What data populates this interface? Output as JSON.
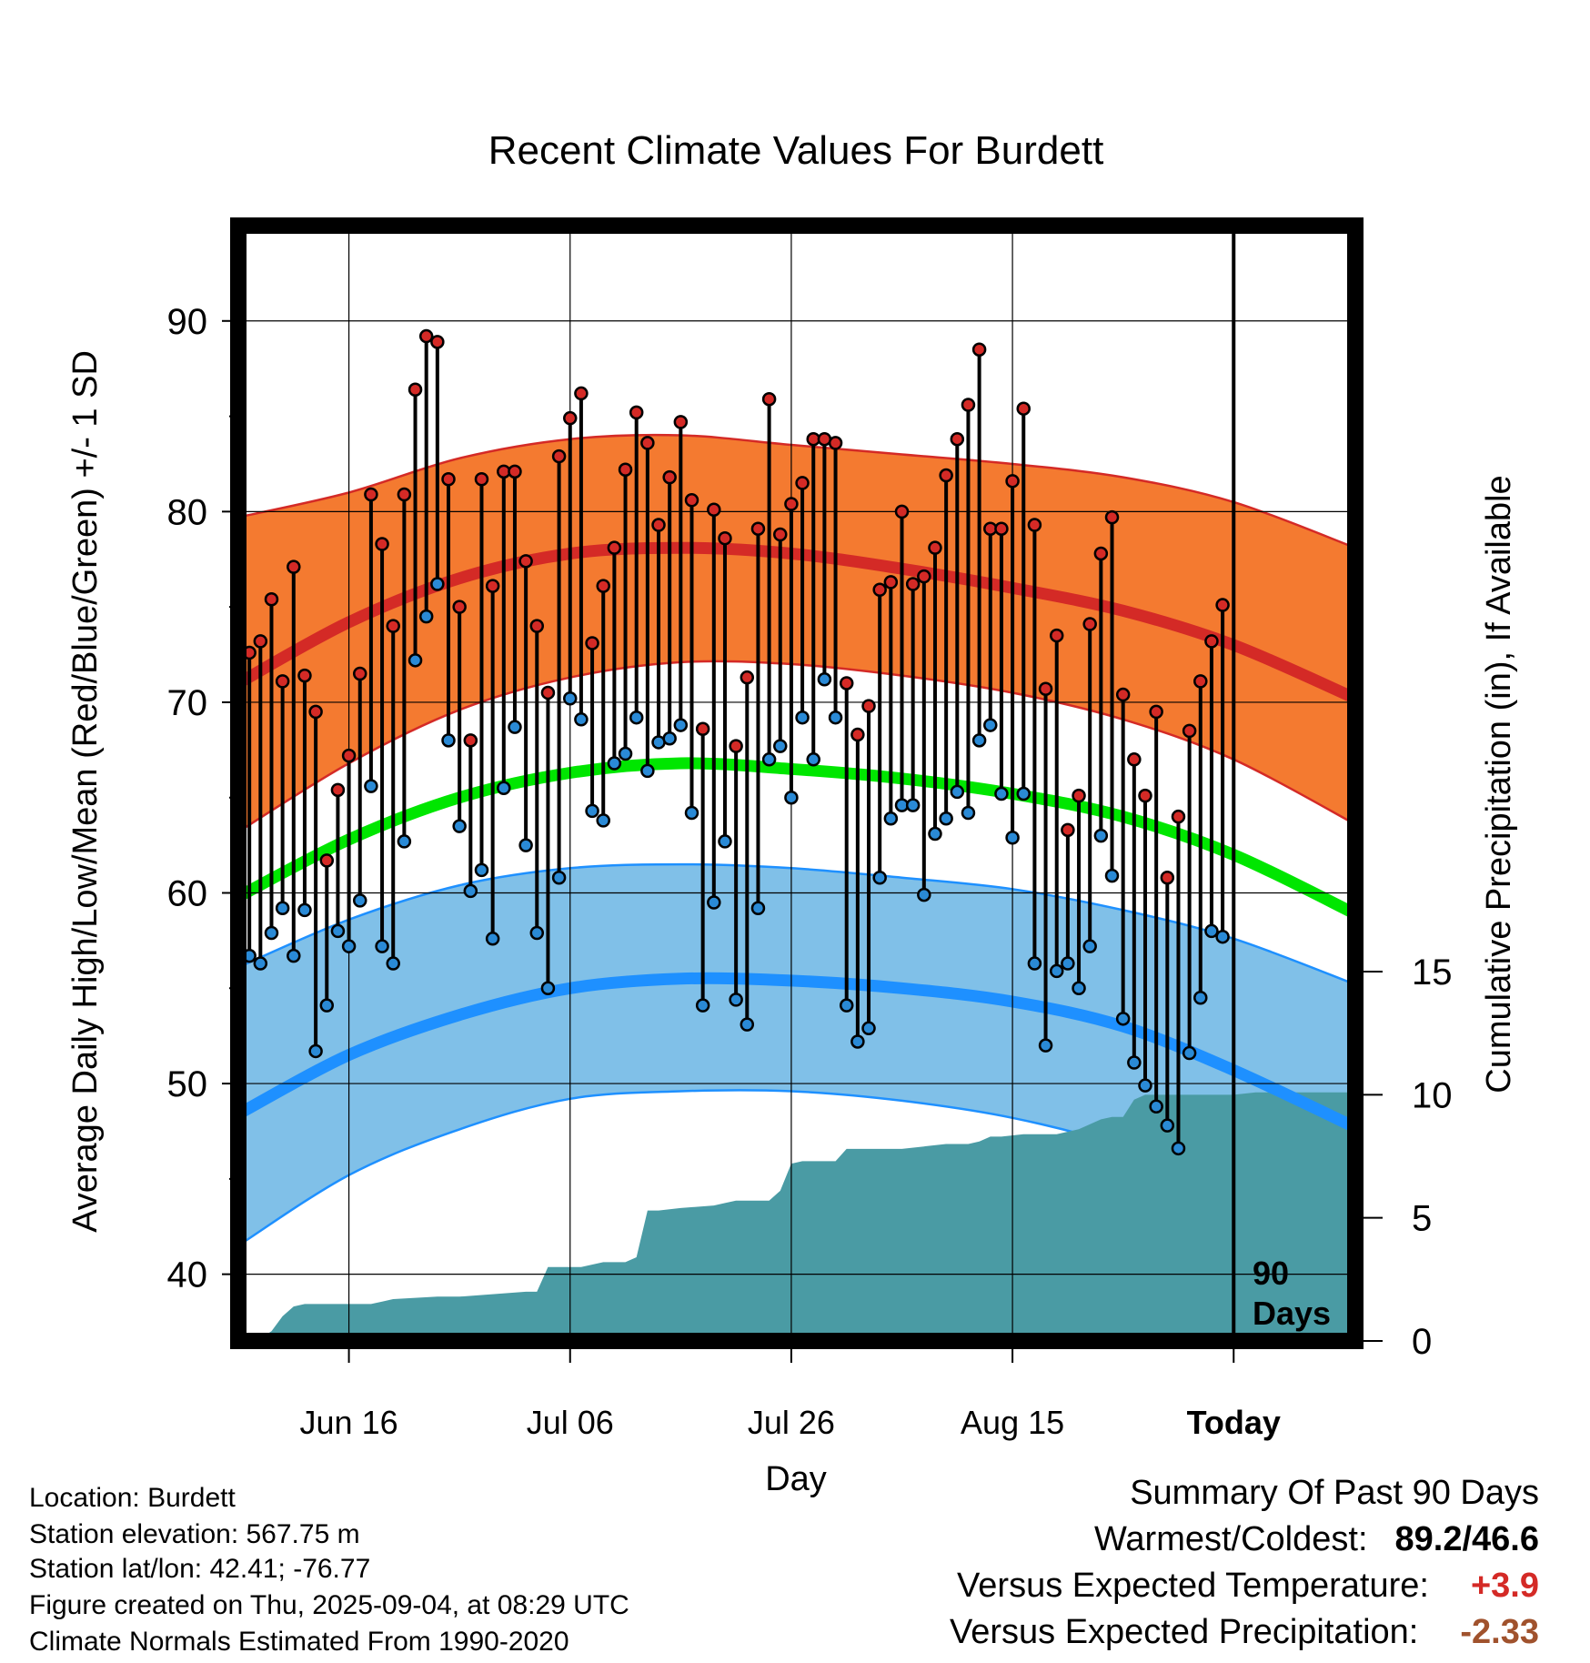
{
  "chart_data": {
    "type": "line",
    "title": "Recent Climate Values For Burdett",
    "xlabel": "Day",
    "ylabel": "Average Daily High/Low/Mean (Red/Blue/Green) +/- 1 SD",
    "y2label": "Cumulative Precipitation (in), If Available",
    "ylim": [
      36.5,
      95
    ],
    "y2lim": [
      0,
      45.3
    ],
    "y_ticks": [
      40,
      50,
      60,
      70,
      80,
      90
    ],
    "y2_ticks": [
      0,
      5,
      10,
      15
    ],
    "x_day_range": [
      0,
      101
    ],
    "x_ticks": [
      {
        "day": 10,
        "label": "Jun 16"
      },
      {
        "day": 30,
        "label": "Jul 06"
      },
      {
        "day": 50,
        "label": "Jul 26"
      },
      {
        "day": 70,
        "label": "Aug 15"
      },
      {
        "day": 90,
        "label": "Today"
      }
    ],
    "today_day": 90,
    "today_annotation": [
      "90",
      "Days"
    ],
    "normals": {
      "days": [
        0,
        10,
        20,
        30,
        40,
        50,
        60,
        70,
        80,
        90,
        101
      ],
      "high_mean": [
        71.0,
        74.2,
        76.5,
        77.8,
        78.1,
        77.8,
        77.0,
        76.0,
        74.8,
        73.0,
        70.2
      ],
      "high_upper": [
        79.7,
        81.0,
        82.8,
        83.8,
        84.0,
        83.5,
        83.0,
        82.5,
        81.8,
        80.5,
        78.1
      ],
      "high_lower": [
        63.2,
        66.8,
        69.6,
        71.3,
        72.1,
        72.0,
        71.4,
        70.5,
        69.1,
        67.0,
        63.6
      ],
      "mean_mean": [
        59.8,
        62.8,
        65.0,
        66.3,
        66.8,
        66.5,
        66.0,
        65.2,
        64.0,
        62.0,
        58.9
      ],
      "low_mean": [
        48.4,
        51.5,
        53.6,
        55.0,
        55.5,
        55.4,
        55.0,
        54.3,
        53.0,
        50.7,
        47.7
      ],
      "low_upper": [
        56.1,
        58.6,
        60.4,
        61.3,
        61.5,
        61.3,
        60.8,
        60.2,
        59.1,
        57.6,
        55.2
      ],
      "low_lower": [
        41.5,
        45.2,
        47.6,
        49.2,
        49.6,
        49.6,
        49.1,
        48.2,
        46.7,
        44.5,
        41.0
      ]
    },
    "highs": [
      67.7,
      72.6,
      73.2,
      75.4,
      71.1,
      77.1,
      71.4,
      69.5,
      61.7,
      65.4,
      67.2,
      71.5,
      80.9,
      78.3,
      74.0,
      80.9,
      86.4,
      89.2,
      88.9,
      81.7,
      75.0,
      68.0,
      81.7,
      76.1,
      82.1,
      82.1,
      77.4,
      74.0,
      70.5,
      82.9,
      84.9,
      86.2,
      73.1,
      76.1,
      78.1,
      82.2,
      85.2,
      83.6,
      79.3,
      81.8,
      84.7,
      80.6,
      68.6,
      80.1,
      78.6,
      67.7,
      71.3,
      79.1,
      85.9,
      78.8,
      80.4,
      81.5,
      83.8,
      83.8,
      83.6,
      71.0,
      68.3,
      69.8,
      75.9,
      76.3,
      80.0,
      76.2,
      76.6,
      78.1,
      81.9,
      83.8,
      85.6,
      88.5,
      79.1,
      79.1,
      81.6,
      85.4,
      79.3,
      70.7,
      73.5,
      63.3,
      65.1,
      74.1,
      77.8,
      79.7,
      70.4,
      67.0,
      65.1,
      69.5,
      60.8,
      64.0,
      68.5,
      71.1,
      73.2,
      75.1
    ],
    "lows": [
      59.9,
      56.7,
      56.3,
      57.9,
      59.2,
      56.7,
      59.1,
      51.7,
      54.1,
      58.0,
      57.2,
      59.6,
      65.6,
      57.2,
      56.3,
      62.7,
      72.2,
      74.5,
      76.2,
      68.0,
      63.5,
      60.1,
      61.2,
      57.6,
      65.5,
      68.7,
      62.5,
      57.9,
      55.0,
      60.8,
      70.2,
      69.1,
      64.3,
      63.8,
      66.8,
      67.3,
      69.2,
      66.4,
      67.9,
      68.1,
      68.8,
      64.2,
      54.1,
      59.5,
      62.7,
      54.4,
      53.1,
      59.2,
      67.0,
      67.7,
      65.0,
      69.2,
      67.0,
      71.2,
      69.2,
      54.1,
      52.2,
      52.9,
      60.8,
      63.9,
      64.6,
      64.6,
      59.9,
      63.1,
      63.9,
      65.3,
      64.2,
      68.0,
      68.8,
      65.2,
      62.9,
      65.2,
      56.3,
      52.0,
      55.9,
      56.3,
      55.0,
      57.2,
      63.0,
      60.9,
      53.4,
      51.1,
      49.9,
      48.8,
      47.8,
      46.6,
      51.6,
      54.5,
      58.0,
      57.7
    ],
    "precip_days": [
      0,
      2,
      3,
      4,
      5,
      6,
      8,
      10,
      11,
      12,
      13,
      14,
      18,
      19,
      20,
      26,
      27,
      28,
      29,
      31,
      33,
      35,
      36,
      37,
      38,
      40,
      43,
      44,
      45,
      46,
      47,
      48,
      49,
      50,
      51,
      54,
      55,
      60,
      62,
      64,
      66,
      67,
      68,
      69,
      71,
      73,
      74,
      75,
      76,
      78,
      79,
      80,
      81,
      82,
      90,
      92,
      101
    ],
    "precip_values": [
      0.0,
      0.1,
      0.4,
      1.0,
      1.4,
      1.5,
      1.5,
      1.5,
      1.5,
      1.5,
      1.6,
      1.7,
      1.8,
      1.8,
      1.8,
      2.0,
      2.0,
      3.0,
      3.0,
      3.0,
      3.2,
      3.2,
      3.4,
      5.3,
      5.3,
      5.4,
      5.5,
      5.6,
      5.7,
      5.7,
      5.7,
      5.7,
      6.1,
      7.2,
      7.3,
      7.3,
      7.8,
      7.8,
      7.9,
      8.0,
      8.0,
      8.1,
      8.3,
      8.3,
      8.4,
      8.4,
      8.4,
      8.5,
      8.6,
      9.0,
      9.1,
      9.1,
      9.8,
      10.0,
      10.0,
      10.1,
      10.1
    ]
  },
  "info": {
    "location": "Location: Burdett",
    "elevation": "Station elevation: 567.75 m",
    "latlon": "Station lat/lon: 42.41; -76.77",
    "created": "Figure created on Thu, 2025-09-04, at 08:29 UTC",
    "normals": "Climate Normals Estimated From 1990-2020"
  },
  "summary": {
    "title": "Summary Of Past 90 Days",
    "warmest_label": "Warmest/Coldest:",
    "warmest_value": "89.2/46.6",
    "temp_label": "Versus Expected Temperature:",
    "temp_value": "+3.9",
    "precip_label": "Versus Expected Precipitation:",
    "precip_value": "-2.33"
  },
  "colors": {
    "high_band": "#f47a30",
    "high_line": "#d42a26",
    "mean_line": "#00e600",
    "low_band": "#80c0e8",
    "low_line": "#1e90ff",
    "precip_fill": "#4a9ba4",
    "high_dot": "#d42a26",
    "low_dot": "#2a8ad6",
    "temp_value": "#d42a26",
    "precip_value": "#a0522d"
  }
}
